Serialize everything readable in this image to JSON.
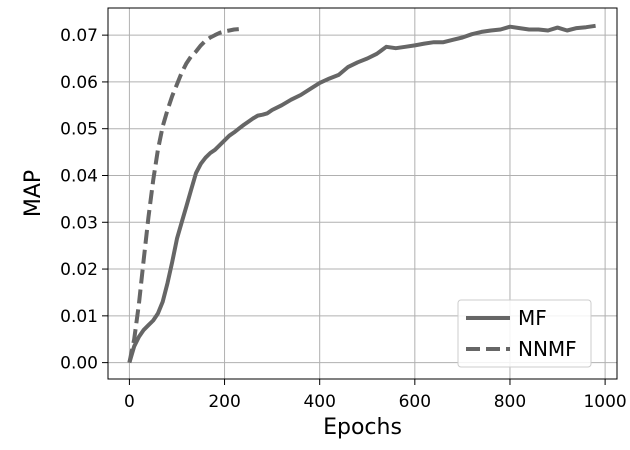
{
  "chart_data": {
    "type": "line",
    "xlabel": "Epochs",
    "ylabel": "MAP",
    "xlim": [
      -45,
      1025
    ],
    "ylim": [
      -0.0035,
      0.0758
    ],
    "xticks": [
      0,
      200,
      400,
      600,
      800,
      1000
    ],
    "yticks": [
      0.0,
      0.01,
      0.02,
      0.03,
      0.04,
      0.05,
      0.06,
      0.07
    ],
    "xtick_labels": [
      "0",
      "200",
      "400",
      "600",
      "800",
      "1000"
    ],
    "ytick_labels": [
      "0.00",
      "0.01",
      "0.02",
      "0.03",
      "0.04",
      "0.05",
      "0.06",
      "0.07"
    ],
    "grid": true,
    "legend_position": "lower-right",
    "series": [
      {
        "name": "MF",
        "style": "solid",
        "color": "#666666",
        "x": [
          0,
          10,
          20,
          30,
          40,
          50,
          60,
          70,
          80,
          90,
          100,
          110,
          120,
          130,
          140,
          150,
          160,
          170,
          180,
          190,
          200,
          210,
          220,
          230,
          240,
          250,
          260,
          270,
          280,
          290,
          300,
          320,
          340,
          360,
          380,
          400,
          420,
          440,
          460,
          480,
          500,
          520,
          540,
          560,
          580,
          600,
          620,
          640,
          660,
          680,
          700,
          720,
          740,
          760,
          780,
          800,
          820,
          840,
          860,
          880,
          900,
          920,
          940,
          960,
          980
        ],
        "y": [
          0.0,
          0.0035,
          0.0055,
          0.007,
          0.008,
          0.009,
          0.0105,
          0.013,
          0.017,
          0.0215,
          0.0265,
          0.03,
          0.0335,
          0.037,
          0.0405,
          0.0425,
          0.0438,
          0.0448,
          0.0455,
          0.0465,
          0.0475,
          0.0485,
          0.0492,
          0.05,
          0.0508,
          0.0515,
          0.0522,
          0.0528,
          0.053,
          0.0533,
          0.054,
          0.055,
          0.0562,
          0.0572,
          0.0585,
          0.0598,
          0.0607,
          0.0615,
          0.0632,
          0.0642,
          0.065,
          0.066,
          0.0675,
          0.0672,
          0.0675,
          0.0678,
          0.0682,
          0.0685,
          0.0685,
          0.069,
          0.0695,
          0.0702,
          0.0707,
          0.071,
          0.0712,
          0.0718,
          0.0715,
          0.0712,
          0.0712,
          0.071,
          0.0716,
          0.071,
          0.0715,
          0.0717,
          0.072
        ]
      },
      {
        "name": "NNMF",
        "style": "dashed",
        "color": "#666666",
        "x": [
          0,
          10,
          20,
          30,
          40,
          50,
          60,
          70,
          80,
          90,
          100,
          110,
          120,
          130,
          140,
          150,
          160,
          170,
          180,
          190,
          200,
          210,
          220,
          230
        ],
        "y": [
          0.0,
          0.005,
          0.0125,
          0.022,
          0.031,
          0.039,
          0.0455,
          0.0505,
          0.054,
          0.057,
          0.0595,
          0.062,
          0.064,
          0.0655,
          0.0665,
          0.0678,
          0.0688,
          0.0695,
          0.07,
          0.0705,
          0.0708,
          0.071,
          0.0712,
          0.0713
        ]
      }
    ]
  }
}
